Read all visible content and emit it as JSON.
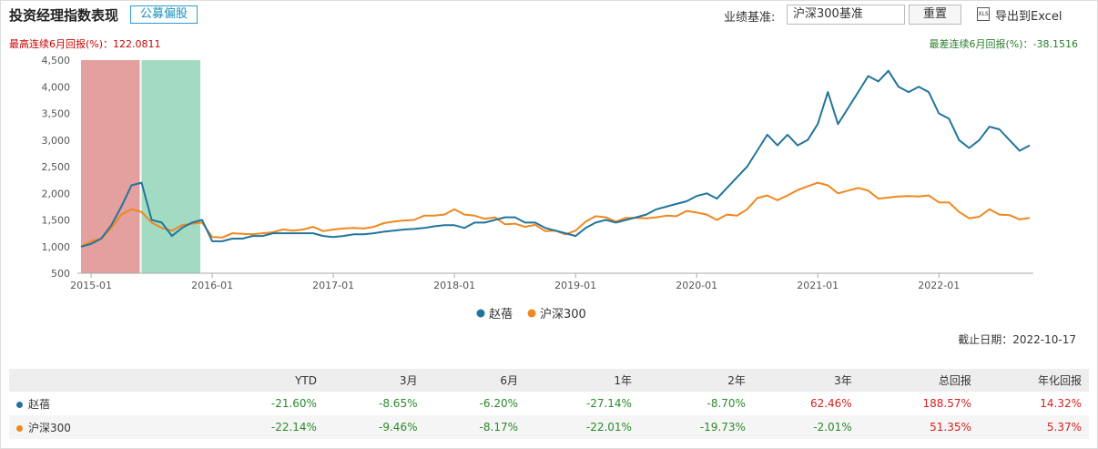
{
  "header": {
    "title": "投资经理指数表现",
    "tag": "公募偏股",
    "benchmark_label": "业绩基准:",
    "benchmark": "沪深300基准",
    "reset": "重置",
    "export": "导出到Excel"
  },
  "chart_data": {
    "type": "line",
    "best_note": "最高连续6月回报(%)：122.0811",
    "worst_note": "最差连续6月回报(%)：-38.1516",
    "bands": [
      {
        "from": "2014-12",
        "to": "2015-06",
        "color": "#e39a9a"
      },
      {
        "from": "2015-06",
        "to": "2015-12",
        "color": "#9ed9bf"
      }
    ],
    "x": [
      "2014-12",
      "2015-01",
      "2015-02",
      "2015-03",
      "2015-04",
      "2015-05",
      "2015-06",
      "2015-07",
      "2015-08",
      "2015-09",
      "2015-10",
      "2015-11",
      "2015-12",
      "2016-01",
      "2016-02",
      "2016-03",
      "2016-04",
      "2016-05",
      "2016-06",
      "2016-07",
      "2016-08",
      "2016-09",
      "2016-10",
      "2016-11",
      "2016-12",
      "2017-01",
      "2017-02",
      "2017-03",
      "2017-04",
      "2017-05",
      "2017-06",
      "2017-07",
      "2017-08",
      "2017-09",
      "2017-10",
      "2017-11",
      "2017-12",
      "2018-01",
      "2018-02",
      "2018-03",
      "2018-04",
      "2018-05",
      "2018-06",
      "2018-07",
      "2018-08",
      "2018-09",
      "2018-10",
      "2018-11",
      "2018-12",
      "2019-01",
      "2019-02",
      "2019-03",
      "2019-04",
      "2019-05",
      "2019-06",
      "2019-07",
      "2019-08",
      "2019-09",
      "2019-10",
      "2019-11",
      "2019-12",
      "2020-01",
      "2020-02",
      "2020-03",
      "2020-04",
      "2020-05",
      "2020-06",
      "2020-07",
      "2020-08",
      "2020-09",
      "2020-10",
      "2020-11",
      "2020-12",
      "2021-01",
      "2021-02",
      "2021-03",
      "2021-04",
      "2021-05",
      "2021-06",
      "2021-07",
      "2021-08",
      "2021-09",
      "2021-10",
      "2021-11",
      "2021-12",
      "2022-01",
      "2022-02",
      "2022-03",
      "2022-04",
      "2022-05",
      "2022-06",
      "2022-07",
      "2022-08",
      "2022-09",
      "2022-10"
    ],
    "series": [
      {
        "name": "赵蓓",
        "color": "#21759b",
        "values": [
          1000,
          1050,
          1150,
          1400,
          1750,
          2150,
          2200,
          1500,
          1450,
          1200,
          1350,
          1450,
          1500,
          1100,
          1100,
          1150,
          1150,
          1200,
          1200,
          1250,
          1250,
          1250,
          1250,
          1250,
          1200,
          1180,
          1200,
          1230,
          1230,
          1250,
          1280,
          1300,
          1320,
          1330,
          1350,
          1380,
          1400,
          1400,
          1350,
          1450,
          1450,
          1500,
          1550,
          1550,
          1450,
          1450,
          1350,
          1300,
          1250,
          1200,
          1350,
          1450,
          1500,
          1450,
          1500,
          1550,
          1600,
          1700,
          1750,
          1800,
          1850,
          1950,
          2000,
          1900,
          2100,
          2300,
          2500,
          2800,
          3100,
          2900,
          3100,
          2900,
          3000,
          3300,
          3900,
          3300,
          3600,
          3900,
          4200,
          4100,
          4300,
          4000,
          3900,
          4000,
          3900,
          3500,
          3400,
          3000,
          2850,
          3000,
          3250,
          3200,
          3000,
          2800,
          2900
        ]
      },
      {
        "name": "沪深300",
        "color": "#f0871f",
        "values": [
          1000,
          1100,
          1150,
          1350,
          1600,
          1700,
          1650,
          1450,
          1350,
          1300,
          1400,
          1430,
          1450,
          1180,
          1170,
          1250,
          1240,
          1230,
          1250,
          1270,
          1320,
          1300,
          1320,
          1370,
          1290,
          1320,
          1340,
          1350,
          1340,
          1370,
          1440,
          1470,
          1490,
          1500,
          1580,
          1580,
          1600,
          1700,
          1600,
          1580,
          1520,
          1550,
          1420,
          1430,
          1370,
          1410,
          1290,
          1300,
          1230,
          1300,
          1470,
          1570,
          1550,
          1470,
          1540,
          1540,
          1530,
          1550,
          1580,
          1570,
          1670,
          1640,
          1600,
          1500,
          1600,
          1580,
          1700,
          1910,
          1960,
          1870,
          1960,
          2060,
          2130,
          2200,
          2150,
          2000,
          2050,
          2100,
          2050,
          1900,
          1920,
          1940,
          1950,
          1940,
          1960,
          1830,
          1830,
          1650,
          1530,
          1560,
          1700,
          1600,
          1590,
          1510,
          1540
        ]
      }
    ],
    "xlim": [
      "2014-12",
      "2022-10"
    ],
    "xticks": [
      "2015-01",
      "2016-01",
      "2017-01",
      "2018-01",
      "2019-01",
      "2020-01",
      "2021-01",
      "2022-01"
    ],
    "ylim": [
      500,
      4500
    ],
    "yticks": [
      500,
      {
        "value": 1000,
        "label": "1,000"
      },
      {
        "value": 1500,
        "label": "1,500"
      },
      {
        "value": 2000,
        "label": "2,000"
      },
      {
        "value": 2500,
        "label": "2,500"
      },
      {
        "value": 3000,
        "label": "3,000"
      },
      {
        "value": 3500,
        "label": "3,500"
      },
      {
        "value": 4000,
        "label": "4,000"
      },
      {
        "value": 4500,
        "label": "4,500"
      }
    ],
    "grid": false,
    "legend": "bottom"
  },
  "cutoff": "截止日期：2022-10-17",
  "table": {
    "columns": [
      "YTD",
      "3月",
      "6月",
      "1年",
      "2年",
      "3年",
      "总回报",
      "年化回报"
    ],
    "rows": [
      {
        "name": "赵蓓",
        "cells": [
          "-21.60%",
          "-8.65%",
          "-6.20%",
          "-27.14%",
          "-8.70%",
          "62.46%",
          "188.57%",
          "14.32%"
        ]
      },
      {
        "name": "沪深300",
        "cells": [
          "-22.14%",
          "-9.46%",
          "-8.17%",
          "-22.01%",
          "-19.73%",
          "-2.01%",
          "51.35%",
          "5.37%"
        ]
      }
    ]
  }
}
